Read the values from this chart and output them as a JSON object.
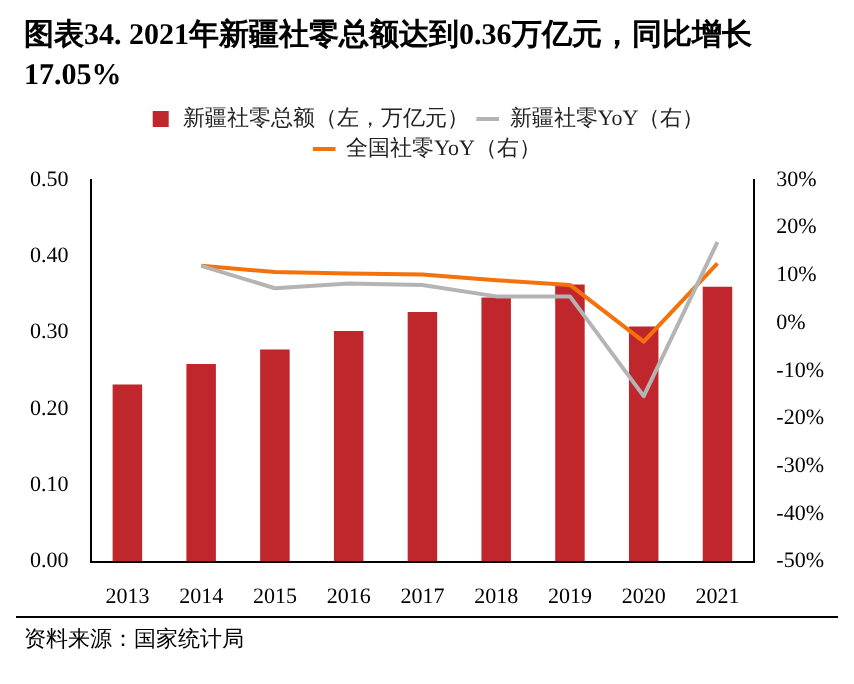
{
  "chart_data": {
    "type": "bar",
    "title": "图表34. 2021年新疆社零总额达到0.36万亿元，同比增长17.05%",
    "categories": [
      "2013",
      "2014",
      "2015",
      "2016",
      "2017",
      "2018",
      "2019",
      "2020",
      "2021"
    ],
    "series": [
      {
        "name": "新疆社零总额（左，万亿元）",
        "color": "#c0272d",
        "values": [
          0.232,
          0.259,
          0.278,
          0.302,
          0.327,
          0.346,
          0.363,
          0.308,
          0.36
        ]
      },
      {
        "name": "新疆社零YoY（右）",
        "type": "line",
        "axis": "y2",
        "color": "#b4b4b4",
        "values": [
          null,
          12,
          7.3,
          8.3,
          8.0,
          5.6,
          5.6,
          -15.3,
          17
        ]
      },
      {
        "name": "全国社零YoY（右）",
        "type": "line",
        "axis": "y2",
        "color": "#f4720c",
        "values": [
          null,
          12.0,
          10.7,
          10.4,
          10.2,
          9.0,
          8.0,
          -3.9,
          12.5
        ]
      }
    ],
    "ylim": [
      0,
      0.5
    ],
    "yticks": [
      {
        "value": 0,
        "label": "0.00"
      },
      {
        "value": 0.1,
        "label": "0.10"
      },
      {
        "value": 0.2,
        "label": "0.20"
      },
      {
        "value": 0.3,
        "label": "0.30"
      },
      {
        "value": 0.4,
        "label": "0.40"
      },
      {
        "value": 0.5,
        "label": "0.50"
      }
    ],
    "y2lim": [
      -50,
      30
    ],
    "y2ticks": [
      {
        "value": -50,
        "label": "-50%"
      },
      {
        "value": -40,
        "label": "-40%"
      },
      {
        "value": -30,
        "label": "-30%"
      },
      {
        "value": -20,
        "label": "-20%"
      },
      {
        "value": -10,
        "label": "-10%"
      },
      {
        "value": 0,
        "label": "0%"
      },
      {
        "value": 10,
        "label": "10%"
      },
      {
        "value": 20,
        "label": "20%"
      },
      {
        "value": 30,
        "label": "30%"
      }
    ],
    "grid": false,
    "legend": "top",
    "annotations": [
      "资料来源：国家统计局"
    ]
  }
}
